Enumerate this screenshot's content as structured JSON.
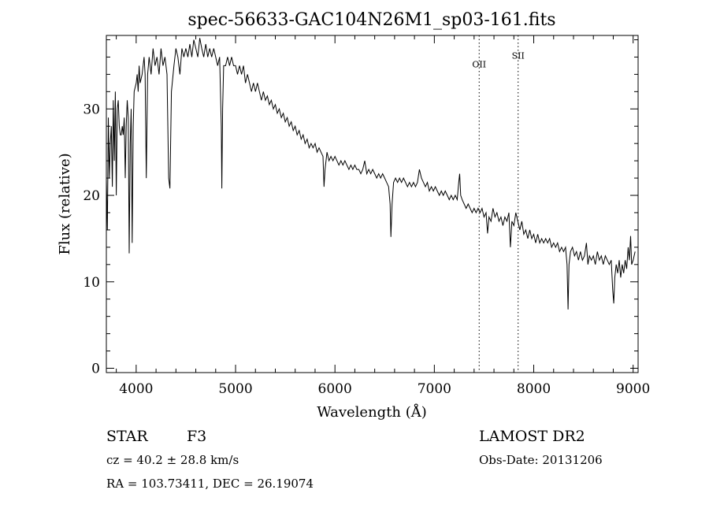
{
  "chart_data": {
    "type": "line",
    "title": "spec-56633-GAC104N26M1_sp03-161.fits",
    "xlabel": "Wavelength (Å)",
    "ylabel": "Flux (relative)",
    "xlim": [
      3700,
      9050
    ],
    "ylim": [
      -0.5,
      38.5
    ],
    "grid": false,
    "xticks": [
      4000,
      5000,
      6000,
      7000,
      8000,
      9000
    ],
    "xtick_labels": [
      "4000",
      "5000",
      "6000",
      "7000",
      "8000",
      "9000"
    ],
    "yticks": [
      0,
      10,
      20,
      30
    ],
    "ytick_labels": [
      "0",
      "10",
      "20",
      "30"
    ],
    "line_markers": [
      {
        "label": "OII",
        "x": 7451,
        "label_y": 34.8
      },
      {
        "label": "SII",
        "x": 7843,
        "label_y": 35.8
      }
    ],
    "series": [
      {
        "points": [
          [
            3700,
            22
          ],
          [
            3710,
            16
          ],
          [
            3720,
            29
          ],
          [
            3730,
            22
          ],
          [
            3740,
            26
          ],
          [
            3750,
            28
          ],
          [
            3760,
            21
          ],
          [
            3770,
            31
          ],
          [
            3780,
            24
          ],
          [
            3790,
            32
          ],
          [
            3800,
            20
          ],
          [
            3810,
            30
          ],
          [
            3820,
            31
          ],
          [
            3830,
            28
          ],
          [
            3840,
            27
          ],
          [
            3850,
            27
          ],
          [
            3860,
            28
          ],
          [
            3870,
            27
          ],
          [
            3880,
            29
          ],
          [
            3890,
            22
          ],
          [
            3900,
            28
          ],
          [
            3910,
            31
          ],
          [
            3920,
            29
          ],
          [
            3930,
            13.3
          ],
          [
            3940,
            26
          ],
          [
            3950,
            30
          ],
          [
            3960,
            14.5
          ],
          [
            3970,
            28
          ],
          [
            3980,
            32
          ],
          [
            4000,
            33
          ],
          [
            4010,
            34
          ],
          [
            4020,
            32
          ],
          [
            4030,
            35
          ],
          [
            4040,
            33
          ],
          [
            4060,
            34
          ],
          [
            4080,
            36
          ],
          [
            4090,
            34
          ],
          [
            4102,
            22
          ],
          [
            4115,
            34
          ],
          [
            4130,
            36
          ],
          [
            4150,
            34
          ],
          [
            4170,
            37
          ],
          [
            4190,
            35
          ],
          [
            4210,
            36
          ],
          [
            4230,
            34
          ],
          [
            4250,
            37
          ],
          [
            4270,
            35
          ],
          [
            4290,
            36
          ],
          [
            4310,
            34
          ],
          [
            4327,
            22
          ],
          [
            4340,
            20.8
          ],
          [
            4355,
            32
          ],
          [
            4380,
            35
          ],
          [
            4400,
            37
          ],
          [
            4420,
            36
          ],
          [
            4440,
            34
          ],
          [
            4460,
            37
          ],
          [
            4480,
            36
          ],
          [
            4500,
            37
          ],
          [
            4520,
            36
          ],
          [
            4540,
            37.5
          ],
          [
            4560,
            36
          ],
          [
            4580,
            38
          ],
          [
            4600,
            37
          ],
          [
            4620,
            36
          ],
          [
            4640,
            38.2
          ],
          [
            4660,
            37
          ],
          [
            4680,
            36
          ],
          [
            4700,
            37.5
          ],
          [
            4720,
            36
          ],
          [
            4740,
            37
          ],
          [
            4760,
            36
          ],
          [
            4780,
            37
          ],
          [
            4800,
            36
          ],
          [
            4820,
            35
          ],
          [
            4840,
            36
          ],
          [
            4856,
            28
          ],
          [
            4862,
            20.8
          ],
          [
            4870,
            30
          ],
          [
            4880,
            35
          ],
          [
            4900,
            35
          ],
          [
            4920,
            36
          ],
          [
            4940,
            35
          ],
          [
            4960,
            36
          ],
          [
            4980,
            35
          ],
          [
            5000,
            35
          ],
          [
            5020,
            34
          ],
          [
            5040,
            35
          ],
          [
            5060,
            34
          ],
          [
            5080,
            35
          ],
          [
            5100,
            33
          ],
          [
            5120,
            34
          ],
          [
            5140,
            33
          ],
          [
            5160,
            32
          ],
          [
            5180,
            33
          ],
          [
            5200,
            32
          ],
          [
            5220,
            33
          ],
          [
            5240,
            32
          ],
          [
            5260,
            31
          ],
          [
            5280,
            32
          ],
          [
            5300,
            31
          ],
          [
            5320,
            31.5
          ],
          [
            5340,
            30.5
          ],
          [
            5360,
            31
          ],
          [
            5380,
            30
          ],
          [
            5400,
            30.5
          ],
          [
            5420,
            29.5
          ],
          [
            5440,
            30
          ],
          [
            5460,
            29
          ],
          [
            5480,
            29.5
          ],
          [
            5500,
            28.5
          ],
          [
            5520,
            29
          ],
          [
            5540,
            28
          ],
          [
            5560,
            28.5
          ],
          [
            5580,
            27.5
          ],
          [
            5600,
            28
          ],
          [
            5620,
            27
          ],
          [
            5640,
            27.5
          ],
          [
            5660,
            26.5
          ],
          [
            5680,
            27
          ],
          [
            5700,
            26
          ],
          [
            5720,
            26.5
          ],
          [
            5740,
            25.5
          ],
          [
            5760,
            26
          ],
          [
            5780,
            25.5
          ],
          [
            5800,
            26
          ],
          [
            5820,
            25
          ],
          [
            5840,
            25.5
          ],
          [
            5860,
            25
          ],
          [
            5880,
            24.5
          ],
          [
            5890,
            21
          ],
          [
            5900,
            23
          ],
          [
            5920,
            25
          ],
          [
            5940,
            24
          ],
          [
            5960,
            24.5
          ],
          [
            5980,
            24
          ],
          [
            6000,
            24.5
          ],
          [
            6020,
            24
          ],
          [
            6040,
            23.5
          ],
          [
            6060,
            24
          ],
          [
            6080,
            23.5
          ],
          [
            6100,
            24
          ],
          [
            6120,
            23.5
          ],
          [
            6140,
            23
          ],
          [
            6160,
            23.5
          ],
          [
            6180,
            23
          ],
          [
            6200,
            23.5
          ],
          [
            6220,
            23
          ],
          [
            6240,
            23
          ],
          [
            6260,
            22.5
          ],
          [
            6280,
            23
          ],
          [
            6300,
            24
          ],
          [
            6320,
            22.5
          ],
          [
            6340,
            23
          ],
          [
            6360,
            22.5
          ],
          [
            6380,
            23
          ],
          [
            6400,
            22.5
          ],
          [
            6420,
            22
          ],
          [
            6440,
            22.5
          ],
          [
            6460,
            22
          ],
          [
            6480,
            22.5
          ],
          [
            6500,
            22
          ],
          [
            6520,
            21.5
          ],
          [
            6540,
            21
          ],
          [
            6555,
            19
          ],
          [
            6563,
            15.2
          ],
          [
            6575,
            19
          ],
          [
            6590,
            21.5
          ],
          [
            6610,
            22
          ],
          [
            6630,
            21.5
          ],
          [
            6650,
            22
          ],
          [
            6670,
            21.5
          ],
          [
            6690,
            22
          ],
          [
            6710,
            21.5
          ],
          [
            6730,
            21
          ],
          [
            6750,
            21.5
          ],
          [
            6770,
            21
          ],
          [
            6790,
            21.5
          ],
          [
            6810,
            21
          ],
          [
            6830,
            21.5
          ],
          [
            6850,
            23
          ],
          [
            6870,
            22
          ],
          [
            6890,
            21.5
          ],
          [
            6910,
            21
          ],
          [
            6930,
            21.5
          ],
          [
            6950,
            20.5
          ],
          [
            6970,
            21
          ],
          [
            6990,
            20.5
          ],
          [
            7010,
            21
          ],
          [
            7030,
            20.5
          ],
          [
            7050,
            20
          ],
          [
            7070,
            20.5
          ],
          [
            7090,
            20
          ],
          [
            7110,
            20.5
          ],
          [
            7130,
            20
          ],
          [
            7150,
            19.5
          ],
          [
            7170,
            20
          ],
          [
            7190,
            19.5
          ],
          [
            7210,
            20
          ],
          [
            7230,
            19.5
          ],
          [
            7245,
            21.5
          ],
          [
            7255,
            22.5
          ],
          [
            7265,
            20
          ],
          [
            7280,
            19.5
          ],
          [
            7300,
            19
          ],
          [
            7320,
            18.5
          ],
          [
            7340,
            19
          ],
          [
            7360,
            18.5
          ],
          [
            7380,
            18
          ],
          [
            7400,
            18.5
          ],
          [
            7420,
            18
          ],
          [
            7440,
            18.5
          ],
          [
            7460,
            18
          ],
          [
            7480,
            18.5
          ],
          [
            7500,
            17.5
          ],
          [
            7520,
            18
          ],
          [
            7535,
            15.6
          ],
          [
            7550,
            17.5
          ],
          [
            7570,
            17
          ],
          [
            7590,
            18.5
          ],
          [
            7610,
            17.5
          ],
          [
            7630,
            18
          ],
          [
            7650,
            17
          ],
          [
            7670,
            17.5
          ],
          [
            7690,
            16.5
          ],
          [
            7710,
            17.5
          ],
          [
            7730,
            17
          ],
          [
            7750,
            18
          ],
          [
            7765,
            14
          ],
          [
            7780,
            17
          ],
          [
            7800,
            16.5
          ],
          [
            7820,
            18
          ],
          [
            7840,
            17
          ],
          [
            7860,
            16
          ],
          [
            7880,
            17
          ],
          [
            7900,
            15.5
          ],
          [
            7920,
            16
          ],
          [
            7940,
            15
          ],
          [
            7960,
            16
          ],
          [
            7980,
            15
          ],
          [
            8000,
            15.5
          ],
          [
            8020,
            14.5
          ],
          [
            8040,
            15.5
          ],
          [
            8060,
            14.5
          ],
          [
            8080,
            15
          ],
          [
            8100,
            14.5
          ],
          [
            8120,
            15
          ],
          [
            8140,
            14.5
          ],
          [
            8160,
            15
          ],
          [
            8180,
            14
          ],
          [
            8200,
            14.5
          ],
          [
            8220,
            14
          ],
          [
            8240,
            14.5
          ],
          [
            8260,
            13.5
          ],
          [
            8280,
            14
          ],
          [
            8300,
            13.5
          ],
          [
            8320,
            14
          ],
          [
            8335,
            12
          ],
          [
            8345,
            6.8
          ],
          [
            8355,
            12
          ],
          [
            8370,
            13.5
          ],
          [
            8390,
            14
          ],
          [
            8410,
            13
          ],
          [
            8430,
            13.5
          ],
          [
            8450,
            12.5
          ],
          [
            8470,
            13.5
          ],
          [
            8490,
            12.5
          ],
          [
            8510,
            13
          ],
          [
            8530,
            14.5
          ],
          [
            8545,
            12
          ],
          [
            8560,
            13
          ],
          [
            8580,
            12.5
          ],
          [
            8600,
            13
          ],
          [
            8620,
            12
          ],
          [
            8640,
            13.5
          ],
          [
            8660,
            12.5
          ],
          [
            8680,
            13
          ],
          [
            8700,
            12
          ],
          [
            8720,
            13
          ],
          [
            8740,
            12.5
          ],
          [
            8760,
            12
          ],
          [
            8780,
            12.5
          ],
          [
            8795,
            9
          ],
          [
            8805,
            7.5
          ],
          [
            8815,
            10.5
          ],
          [
            8830,
            12
          ],
          [
            8845,
            11
          ],
          [
            8860,
            12.5
          ],
          [
            8875,
            10.5
          ],
          [
            8890,
            12
          ],
          [
            8905,
            11
          ],
          [
            8920,
            12.5
          ],
          [
            8935,
            11.5
          ],
          [
            8950,
            14
          ],
          [
            8962,
            12.5
          ],
          [
            8975,
            15.3
          ],
          [
            8985,
            12
          ],
          [
            9000,
            12.5
          ],
          [
            9020,
            13.5
          ]
        ]
      }
    ]
  },
  "info": {
    "object_class": "STAR",
    "subclass": "F3",
    "redshift": "cz = 40.2 ± 28.8 km/s",
    "coords": "RA = 103.73411, DEC =  26.19074",
    "survey": "LAMOST DR2",
    "obs_date": "Obs-Date: 20131206"
  }
}
